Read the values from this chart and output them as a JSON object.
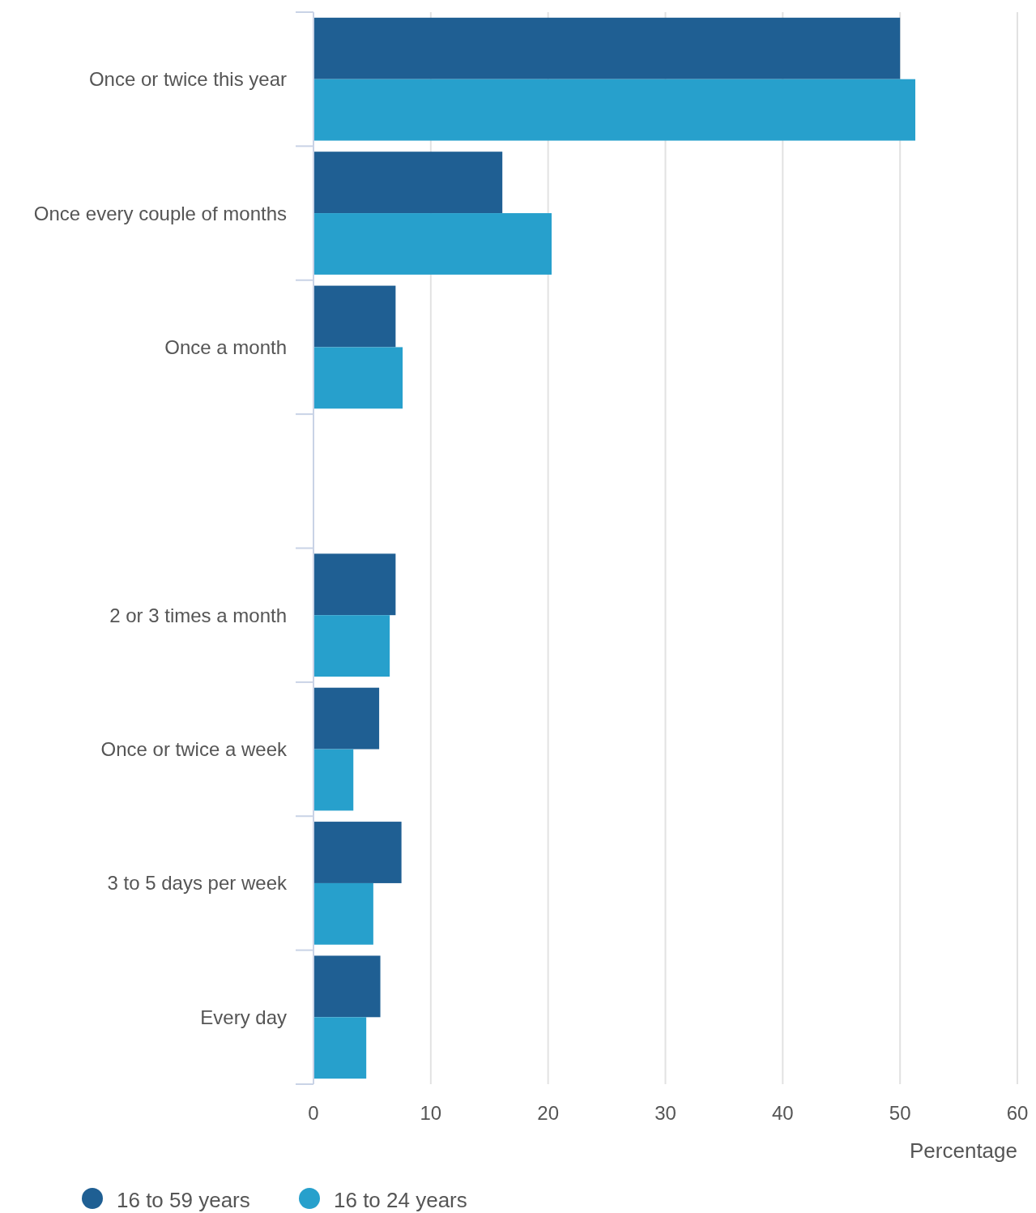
{
  "chart_data": {
    "type": "bar",
    "orientation": "horizontal",
    "categories": [
      "Once or twice this year",
      "Once every couple of months",
      "Once a month",
      null,
      "2 or 3 times a month",
      "Once or twice a week",
      "3 to 5 days per week",
      "Every day"
    ],
    "series": [
      {
        "name": "16 to 59 years",
        "color": "#1f5f93",
        "values": [
          50.0,
          16.1,
          7.0,
          null,
          7.0,
          5.6,
          7.5,
          5.7
        ]
      },
      {
        "name": "16 to 24 years",
        "color": "#27a0cc",
        "values": [
          51.3,
          20.3,
          7.6,
          null,
          6.5,
          3.4,
          5.1,
          4.5
        ]
      }
    ],
    "xlim": [
      0,
      60
    ],
    "xticks": [
      0,
      10,
      20,
      30,
      40,
      50,
      60
    ],
    "xlabel": "Percentage",
    "grid": "x",
    "legend": "bottom left"
  }
}
